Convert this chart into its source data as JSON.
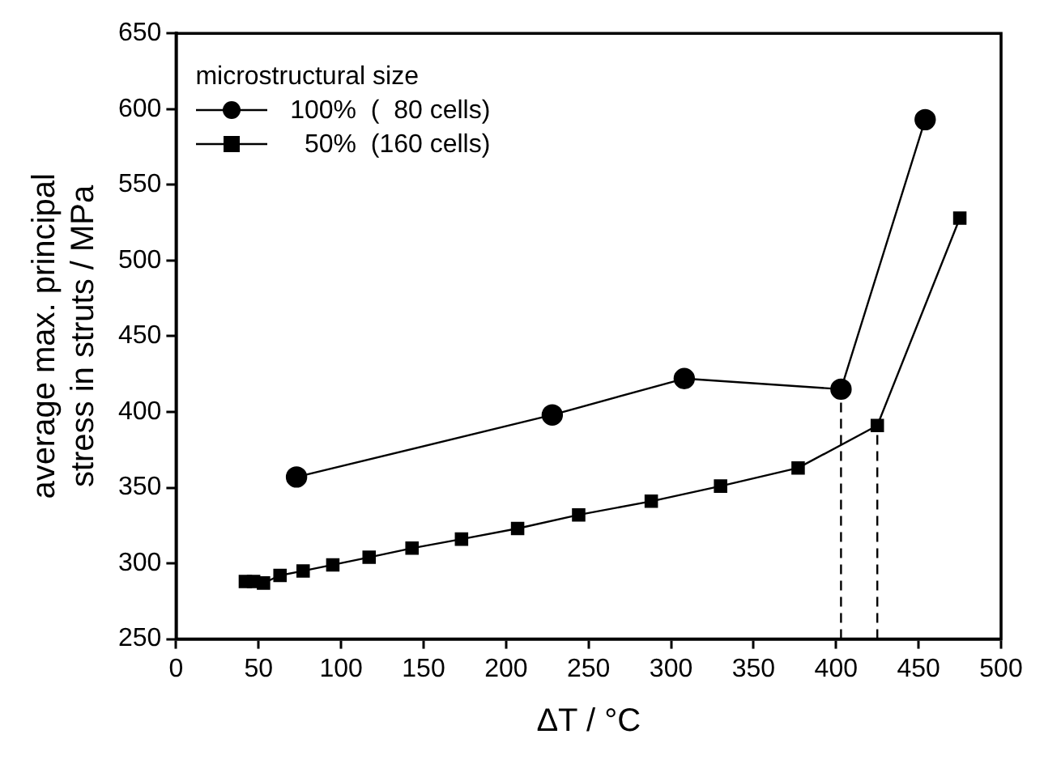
{
  "chart_data": {
    "type": "line",
    "xlabel": "ΔT / °C",
    "ylabel": "average max. principal\nstress in struts / MPa",
    "legend_title": "microstructural size",
    "legend": "top left",
    "grid": false,
    "xlim": [
      0,
      500
    ],
    "xticks": [
      0,
      50,
      100,
      150,
      200,
      250,
      300,
      350,
      400,
      450,
      500
    ],
    "ylim": [
      250,
      650
    ],
    "yticks": [
      250,
      300,
      350,
      400,
      450,
      500,
      550,
      600,
      650
    ],
    "series": [
      {
        "name": "100%  (  80 cells)",
        "color": "#000000",
        "marker": "circle",
        "line_style": "solid",
        "x": [
          73,
          228,
          308,
          403,
          454
        ],
        "values": [
          357,
          398,
          422,
          415,
          593
        ]
      },
      {
        "name": "50%  (160 cells)",
        "color": "#000000",
        "marker": "square",
        "line_style": "solid",
        "x": [
          42,
          47,
          53,
          63,
          77,
          95,
          117,
          143,
          173,
          207,
          244,
          288,
          330,
          377,
          425,
          475
        ],
        "values": [
          288,
          288,
          287,
          292,
          295,
          299,
          304,
          310,
          316,
          323,
          332,
          341,
          351,
          363,
          391,
          528
        ]
      },
      {
        "color": "#000000",
        "marker": "none",
        "line_style": "dashed",
        "x": [
          403,
          403
        ],
        "values": [
          250,
          415
        ]
      },
      {
        "color": "#000000",
        "marker": "none",
        "line_style": "dashed",
        "x": [
          425,
          425
        ],
        "values": [
          250,
          391
        ]
      }
    ]
  }
}
